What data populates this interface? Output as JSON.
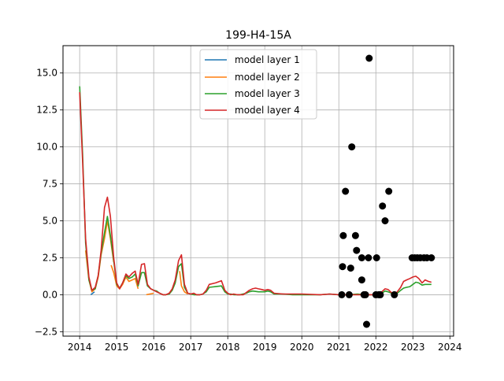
{
  "chart_data": {
    "type": "line",
    "title": "199-H4-15A",
    "xlabel": "",
    "ylabel": "",
    "xlim": [
      2013.55,
      2024.1
    ],
    "ylim": [
      -2.8,
      16.85
    ],
    "grid": true,
    "legend_position": "top-center",
    "x_ticks": [
      2014,
      2015,
      2016,
      2017,
      2018,
      2019,
      2020,
      2021,
      2022,
      2023,
      2024
    ],
    "y_ticks": [
      -2.5,
      0.0,
      2.5,
      5.0,
      7.5,
      10.0,
      12.5,
      15.0
    ],
    "y_tick_labels": [
      "−2.5",
      "0.0",
      "2.5",
      "5.0",
      "7.5",
      "10.0",
      "12.5",
      "15.0"
    ],
    "series": [
      {
        "name": "model layer 1",
        "color": "#1f77b4",
        "segments": [
          [
            [
              2014.3,
              0.0
            ],
            [
              2014.4,
              0.2
            ]
          ]
        ]
      },
      {
        "name": "model layer 2",
        "color": "#ff7f0e",
        "segments": [
          [
            [
              2014.16,
              3.0
            ],
            [
              2014.25,
              1.0
            ],
            [
              2014.33,
              0.2
            ],
            [
              2014.42,
              0.4
            ],
            [
              2014.5,
              1.2
            ],
            [
              2014.58,
              2.7
            ],
            [
              2014.67,
              3.8
            ],
            [
              2014.75,
              5.0
            ],
            [
              2014.83,
              3.8
            ],
            [
              2014.92,
              2.2
            ]
          ],
          [
            [
              2014.85,
              2.0
            ],
            [
              2014.92,
              1.5
            ],
            [
              2015.0,
              0.6
            ],
            [
              2015.08,
              0.4
            ],
            [
              2015.16,
              0.7
            ],
            [
              2015.25,
              1.2
            ],
            [
              2015.33,
              0.9
            ],
            [
              2015.42,
              1.0
            ],
            [
              2015.5,
              1.1
            ],
            [
              2015.58,
              0.4
            ]
          ],
          [
            [
              2015.8,
              0.0
            ],
            [
              2016.0,
              0.1
            ]
          ],
          [
            [
              2016.7,
              1.6
            ],
            [
              2016.75,
              0.6
            ],
            [
              2016.83,
              0.2
            ],
            [
              2016.92,
              0.05
            ]
          ]
        ]
      },
      {
        "name": "model layer 3",
        "color": "#2ca02c",
        "segments": [
          [
            [
              2014.0,
              14.1
            ],
            [
              2014.08,
              9.5
            ],
            [
              2014.16,
              3.5
            ],
            [
              2014.25,
              1.0
            ],
            [
              2014.33,
              0.3
            ],
            [
              2014.42,
              0.4
            ],
            [
              2014.5,
              1.3
            ],
            [
              2014.58,
              2.8
            ],
            [
              2014.67,
              4.2
            ],
            [
              2014.75,
              5.3
            ],
            [
              2014.83,
              4.0
            ],
            [
              2014.92,
              2.3
            ],
            [
              2015.0,
              0.7
            ],
            [
              2015.08,
              0.45
            ],
            [
              2015.16,
              0.8
            ],
            [
              2015.25,
              1.3
            ],
            [
              2015.33,
              1.1
            ],
            [
              2015.42,
              1.2
            ],
            [
              2015.5,
              1.4
            ],
            [
              2015.58,
              0.6
            ],
            [
              2015.67,
              1.5
            ],
            [
              2015.75,
              1.5
            ],
            [
              2015.83,
              0.6
            ],
            [
              2015.92,
              0.4
            ],
            [
              2016.0,
              0.3
            ],
            [
              2016.08,
              0.25
            ],
            [
              2016.16,
              0.1
            ],
            [
              2016.25,
              0.0
            ],
            [
              2016.33,
              0.0
            ],
            [
              2016.42,
              0.05
            ],
            [
              2016.5,
              0.3
            ],
            [
              2016.58,
              0.8
            ],
            [
              2016.67,
              1.9
            ],
            [
              2016.75,
              2.1
            ],
            [
              2016.83,
              0.5
            ],
            [
              2016.92,
              0.1
            ],
            [
              2017.0,
              0.05
            ],
            [
              2017.08,
              0.0
            ],
            [
              2017.16,
              0.0
            ],
            [
              2017.25,
              0.0
            ],
            [
              2017.33,
              0.05
            ],
            [
              2017.42,
              0.2
            ],
            [
              2017.5,
              0.5
            ],
            [
              2017.67,
              0.55
            ],
            [
              2017.83,
              0.6
            ],
            [
              2017.92,
              0.2
            ],
            [
              2018.0,
              0.05
            ],
            [
              2018.08,
              0.05
            ],
            [
              2018.16,
              0.0
            ],
            [
              2018.33,
              0.0
            ],
            [
              2018.5,
              0.1
            ],
            [
              2018.58,
              0.2
            ],
            [
              2018.67,
              0.25
            ],
            [
              2018.83,
              0.2
            ],
            [
              2019.0,
              0.2
            ],
            [
              2019.08,
              0.25
            ],
            [
              2019.16,
              0.2
            ],
            [
              2019.25,
              0.05
            ],
            [
              2019.5,
              0.05
            ],
            [
              2019.75,
              0.0
            ],
            [
              2020.0,
              0.0
            ],
            [
              2020.5,
              0.0
            ],
            [
              2020.75,
              0.05
            ],
            [
              2021.0,
              0.0
            ],
            [
              2021.25,
              0.0
            ],
            [
              2021.5,
              0.05
            ],
            [
              2021.75,
              0.0
            ],
            [
              2022.0,
              0.0
            ],
            [
              2022.16,
              0.1
            ],
            [
              2022.25,
              0.25
            ],
            [
              2022.33,
              0.2
            ],
            [
              2022.42,
              0.1
            ],
            [
              2022.5,
              0.0
            ],
            [
              2022.58,
              0.1
            ],
            [
              2022.67,
              0.3
            ],
            [
              2022.75,
              0.45
            ],
            [
              2022.83,
              0.5
            ],
            [
              2022.92,
              0.55
            ],
            [
              2023.0,
              0.7
            ],
            [
              2023.08,
              0.85
            ],
            [
              2023.16,
              0.8
            ],
            [
              2023.25,
              0.65
            ],
            [
              2023.33,
              0.7
            ],
            [
              2023.42,
              0.7
            ],
            [
              2023.5,
              0.7
            ]
          ]
        ]
      },
      {
        "name": "model layer 4",
        "color": "#d62728",
        "segments": [
          [
            [
              2014.0,
              13.7
            ],
            [
              2014.08,
              9.0
            ],
            [
              2014.16,
              3.8
            ],
            [
              2014.25,
              1.2
            ],
            [
              2014.33,
              0.3
            ],
            [
              2014.42,
              0.5
            ],
            [
              2014.5,
              1.3
            ],
            [
              2014.58,
              3.0
            ],
            [
              2014.67,
              5.9
            ],
            [
              2014.75,
              6.6
            ],
            [
              2014.83,
              5.3
            ],
            [
              2014.92,
              2.5
            ],
            [
              2015.0,
              0.8
            ],
            [
              2015.08,
              0.4
            ],
            [
              2015.16,
              0.8
            ],
            [
              2015.25,
              1.4
            ],
            [
              2015.33,
              1.2
            ],
            [
              2015.42,
              1.45
            ],
            [
              2015.5,
              1.6
            ],
            [
              2015.58,
              0.7
            ],
            [
              2015.67,
              2.05
            ],
            [
              2015.75,
              2.1
            ],
            [
              2015.83,
              0.7
            ],
            [
              2015.92,
              0.4
            ],
            [
              2016.0,
              0.3
            ],
            [
              2016.08,
              0.2
            ],
            [
              2016.16,
              0.1
            ],
            [
              2016.25,
              0.0
            ],
            [
              2016.33,
              0.0
            ],
            [
              2016.42,
              0.1
            ],
            [
              2016.5,
              0.4
            ],
            [
              2016.58,
              1.0
            ],
            [
              2016.67,
              2.3
            ],
            [
              2016.75,
              2.7
            ],
            [
              2016.83,
              0.7
            ],
            [
              2016.92,
              0.1
            ],
            [
              2017.0,
              0.05
            ],
            [
              2017.08,
              0.1
            ],
            [
              2017.16,
              0.0
            ],
            [
              2017.25,
              0.0
            ],
            [
              2017.33,
              0.05
            ],
            [
              2017.42,
              0.3
            ],
            [
              2017.5,
              0.7
            ],
            [
              2017.67,
              0.8
            ],
            [
              2017.83,
              0.95
            ],
            [
              2017.92,
              0.3
            ],
            [
              2018.0,
              0.1
            ],
            [
              2018.08,
              0.0
            ],
            [
              2018.16,
              0.05
            ],
            [
              2018.25,
              0.0
            ],
            [
              2018.42,
              0.0
            ],
            [
              2018.5,
              0.15
            ],
            [
              2018.58,
              0.3
            ],
            [
              2018.67,
              0.4
            ],
            [
              2018.75,
              0.45
            ],
            [
              2018.83,
              0.4
            ],
            [
              2018.92,
              0.35
            ],
            [
              2019.0,
              0.3
            ],
            [
              2019.08,
              0.35
            ],
            [
              2019.16,
              0.3
            ],
            [
              2019.25,
              0.1
            ],
            [
              2019.5,
              0.05
            ],
            [
              2019.75,
              0.05
            ],
            [
              2020.0,
              0.05
            ],
            [
              2020.5,
              0.0
            ],
            [
              2020.75,
              0.05
            ],
            [
              2021.0,
              0.0
            ],
            [
              2021.25,
              0.0
            ],
            [
              2021.5,
              0.0
            ],
            [
              2021.75,
              0.0
            ],
            [
              2022.0,
              0.0
            ],
            [
              2022.16,
              0.2
            ],
            [
              2022.25,
              0.4
            ],
            [
              2022.33,
              0.35
            ],
            [
              2022.42,
              0.15
            ],
            [
              2022.5,
              0.0
            ],
            [
              2022.58,
              0.2
            ],
            [
              2022.67,
              0.5
            ],
            [
              2022.75,
              0.9
            ],
            [
              2022.83,
              1.0
            ],
            [
              2022.92,
              1.1
            ],
            [
              2023.0,
              1.2
            ],
            [
              2023.08,
              1.25
            ],
            [
              2023.16,
              1.1
            ],
            [
              2023.25,
              0.8
            ],
            [
              2023.33,
              1.0
            ],
            [
              2023.42,
              0.9
            ],
            [
              2023.5,
              0.85
            ]
          ]
        ]
      }
    ],
    "observations": {
      "color": "#000000",
      "points": [
        [
          2021.08,
          0.0
        ],
        [
          2021.1,
          1.9
        ],
        [
          2021.12,
          4.0
        ],
        [
          2021.18,
          7.0
        ],
        [
          2021.28,
          0.0
        ],
        [
          2021.32,
          1.8
        ],
        [
          2021.35,
          10.0
        ],
        [
          2021.45,
          4.0
        ],
        [
          2021.48,
          3.0
        ],
        [
          2021.62,
          2.5
        ],
        [
          2021.62,
          1.0
        ],
        [
          2021.68,
          0.0
        ],
        [
          2021.72,
          0.0
        ],
        [
          2021.75,
          -2.0
        ],
        [
          2021.8,
          2.5
        ],
        [
          2021.82,
          16.0
        ],
        [
          2022.0,
          0.0
        ],
        [
          2022.02,
          2.5
        ],
        [
          2022.08,
          0.0
        ],
        [
          2022.12,
          0.0
        ],
        [
          2022.18,
          6.0
        ],
        [
          2022.25,
          5.0
        ],
        [
          2022.35,
          7.0
        ],
        [
          2022.5,
          0.0
        ],
        [
          2022.98,
          2.5
        ],
        [
          2023.05,
          2.5
        ],
        [
          2023.12,
          2.5
        ],
        [
          2023.2,
          2.5
        ],
        [
          2023.3,
          2.5
        ],
        [
          2023.38,
          2.5
        ],
        [
          2023.5,
          2.5
        ]
      ]
    }
  }
}
